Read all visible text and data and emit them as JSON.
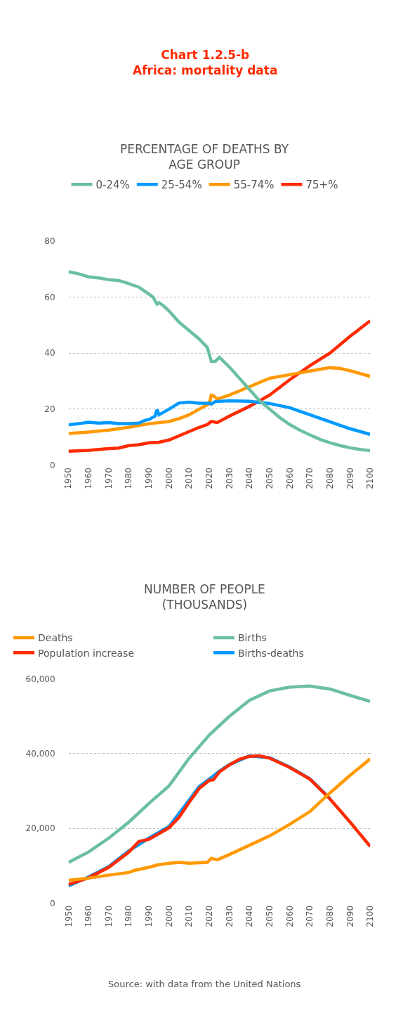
{
  "chart_data": [
    {
      "type": "line",
      "title": "Chart 1.2.5-b\nAfrica: mortality data",
      "subtitle": "PERCENTAGE OF DEATHS BY\nAGE GROUP",
      "legend": "top",
      "grid": "y",
      "xlim": [
        1950,
        2100
      ],
      "xticks": [
        1950,
        1960,
        1970,
        1980,
        1990,
        2000,
        2010,
        2020,
        2030,
        2040,
        2050,
        2060,
        2070,
        2080,
        2090,
        2100
      ],
      "ylim": [
        0,
        80
      ],
      "yticks": [
        0,
        20,
        40,
        60,
        80
      ],
      "series": [
        {
          "name": "0-24%",
          "color": "#6bbfa3",
          "x": [
            1950,
            1955,
            1960,
            1965,
            1970,
            1975,
            1980,
            1983,
            1985,
            1988,
            1990,
            1992,
            1994,
            1995,
            1997,
            2000,
            2005,
            2010,
            2015,
            2019,
            2021,
            2023,
            2025,
            2030,
            2035,
            2040,
            2045,
            2050,
            2055,
            2060,
            2065,
            2070,
            2075,
            2080,
            2085,
            2090,
            2095,
            2100
          ],
          "values": [
            69,
            68.3,
            67.2,
            66.8,
            66.2,
            65.9,
            64.8,
            64,
            63.5,
            62,
            61,
            60,
            57.5,
            58,
            57,
            55,
            51,
            48,
            45,
            42,
            37,
            37,
            38.5,
            35,
            31,
            27,
            23,
            20,
            17,
            14.5,
            12.5,
            10.8,
            9.2,
            8,
            7,
            6.2,
            5.6,
            5.2
          ]
        },
        {
          "name": "25-54%",
          "color": "#0099ff",
          "x": [
            1950,
            1955,
            1960,
            1965,
            1970,
            1975,
            1980,
            1985,
            1988,
            1990,
            1993,
            1994,
            1995,
            2000,
            2005,
            2010,
            2015,
            2020,
            2021,
            2023,
            2030,
            2040,
            2050,
            2060,
            2070,
            2080,
            2090,
            2100
          ],
          "values": [
            14.4,
            14.8,
            15.3,
            15,
            15.2,
            14.8,
            14.8,
            15,
            16,
            16.3,
            17.5,
            19.8,
            18,
            20,
            22.2,
            22.5,
            22.1,
            22.1,
            21.8,
            22.7,
            23,
            22.8,
            22,
            20.5,
            18,
            15.5,
            13,
            11
          ]
        },
        {
          "name": "55-74%",
          "color": "#ff9900",
          "x": [
            1950,
            1960,
            1970,
            1980,
            1990,
            2000,
            2005,
            2010,
            2015,
            2020,
            2021,
            2022,
            2024,
            2030,
            2040,
            2050,
            2060,
            2070,
            2080,
            2085,
            2090,
            2100
          ],
          "values": [
            11.3,
            11.8,
            12.5,
            13.5,
            14.8,
            15.6,
            16.6,
            18,
            20,
            22,
            25,
            24.8,
            23.6,
            25,
            28,
            31,
            32.3,
            33.6,
            34.8,
            34.5,
            33.7,
            31.7
          ]
        },
        {
          "name": "75+%",
          "color": "#ff2a00",
          "x": [
            1950,
            1960,
            1970,
            1975,
            1980,
            1985,
            1990,
            1995,
            2000,
            2005,
            2010,
            2015,
            2019,
            2021,
            2024,
            2030,
            2040,
            2050,
            2060,
            2070,
            2080,
            2090,
            2100
          ],
          "values": [
            5,
            5.3,
            5.9,
            6.1,
            7,
            7.3,
            8,
            8.2,
            9,
            10.5,
            12,
            13.5,
            14.5,
            15.6,
            15.2,
            17.5,
            21,
            25,
            30.5,
            35.5,
            40,
            46,
            51.5
          ]
        }
      ]
    },
    {
      "type": "line",
      "title": "NUMBER OF PEOPLE\n(THOUSANDS)",
      "annotations": [
        "Source: with data from the United Nations"
      ],
      "legend": "top",
      "grid": "y",
      "xlim": [
        1950,
        2100
      ],
      "xticks": [
        1950,
        1960,
        1970,
        1980,
        1990,
        2000,
        2010,
        2020,
        2030,
        2040,
        2050,
        2060,
        2070,
        2080,
        2090,
        2100
      ],
      "ylim": [
        0,
        60000
      ],
      "yticks": [
        0,
        {
          "value": 20000,
          "label": "20,000"
        },
        {
          "value": 40000,
          "label": "40,000"
        },
        {
          "value": 60000,
          "label": "60,000"
        }
      ],
      "series": [
        {
          "name": "Deaths",
          "color": "#ff9900",
          "x": [
            1950,
            1960,
            1970,
            1980,
            1983,
            1990,
            1994,
            2000,
            2005,
            2010,
            2019,
            2021,
            2024,
            2030,
            2040,
            2050,
            2060,
            2070,
            2080,
            2090,
            2100
          ],
          "values": [
            6100,
            6700,
            7500,
            8200,
            8800,
            9600,
            10200,
            10700,
            10900,
            10700,
            10900,
            12000,
            11600,
            13000,
            15500,
            18000,
            21100,
            24500,
            29500,
            34200,
            38600
          ]
        },
        {
          "name": "Births",
          "color": "#6bbfa3",
          "x": [
            1950,
            1960,
            1970,
            1980,
            1990,
            2000,
            2010,
            2020,
            2030,
            2040,
            2050,
            2060,
            2070,
            2080,
            2090,
            2100
          ],
          "values": [
            10900,
            13700,
            17400,
            21700,
            26700,
            31400,
            38800,
            45000,
            50000,
            54300,
            56800,
            57800,
            58100,
            57300,
            55600,
            54000
          ]
        },
        {
          "name": "Population increase",
          "color": "#ff2a00",
          "x": [
            1950,
            1960,
            1970,
            1980,
            1985,
            1990,
            1995,
            2000,
            2005,
            2010,
            2015,
            2020,
            2022,
            2025,
            2030,
            2035,
            2040,
            2045,
            2050,
            2060,
            2070,
            2080,
            2090,
            2100
          ],
          "values": [
            5000,
            6800,
            9600,
            13700,
            16500,
            17100,
            18600,
            20200,
            23000,
            27000,
            30700,
            32900,
            33000,
            35100,
            37000,
            38500,
            39300,
            39400,
            38800,
            36300,
            33200,
            27900,
            21700,
            15200
          ]
        },
        {
          "name": "Births-deaths",
          "color": "#0099ff",
          "x": [
            1950,
            1960,
            1970,
            1980,
            1990,
            2000,
            2010,
            2015,
            2020,
            2025,
            2030,
            2040,
            2050,
            2060,
            2070,
            2080
          ],
          "values": [
            4600,
            7000,
            9800,
            14000,
            17400,
            20500,
            27600,
            31200,
            33200,
            35300,
            37100,
            39400,
            38900,
            36400,
            33300,
            28000
          ]
        }
      ]
    }
  ]
}
